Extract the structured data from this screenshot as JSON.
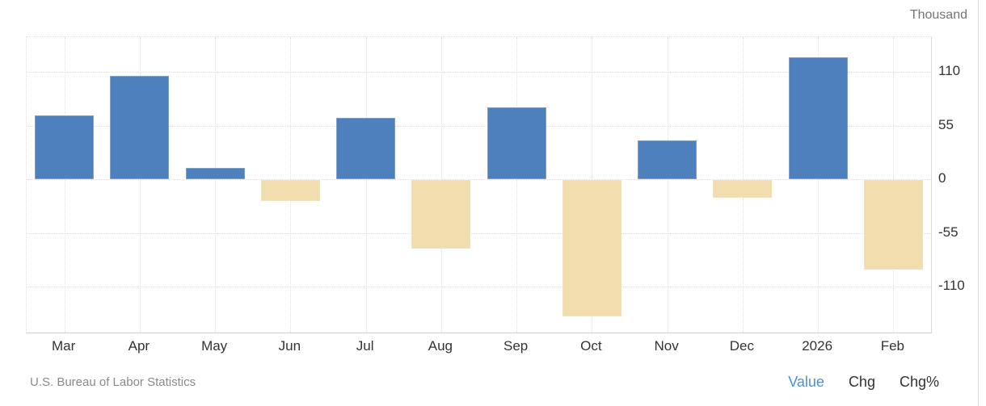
{
  "chart_data": {
    "type": "bar",
    "unit": "Thousand",
    "ylabel": "Thousand",
    "categories": [
      "Mar",
      "Apr",
      "May",
      "Jun",
      "Jul",
      "Aug",
      "Sep",
      "Oct",
      "Nov",
      "Dec",
      "2026",
      "Feb"
    ],
    "values": [
      66,
      106,
      12,
      -21,
      63,
      -70,
      74,
      -140,
      40,
      -18,
      125,
      -92
    ],
    "yticks": [
      110,
      55,
      0,
      -55,
      -110
    ],
    "ylim": [
      -157,
      146
    ],
    "grid": "dotted",
    "legend": "none",
    "colors": {
      "bar_positive": "#4e80bd",
      "bar_positive_border": "#7ea0ca",
      "bar_negative": "#f2ddae",
      "bar_negative_border": "#f0e2bd",
      "accent_link": "#4a90e2"
    }
  },
  "footer": {
    "source": "U.S. Bureau of Labor Statistics",
    "links": [
      {
        "label": "Value",
        "active": true
      },
      {
        "label": "Chg",
        "active": false
      },
      {
        "label": "Chg%",
        "active": false
      }
    ]
  }
}
